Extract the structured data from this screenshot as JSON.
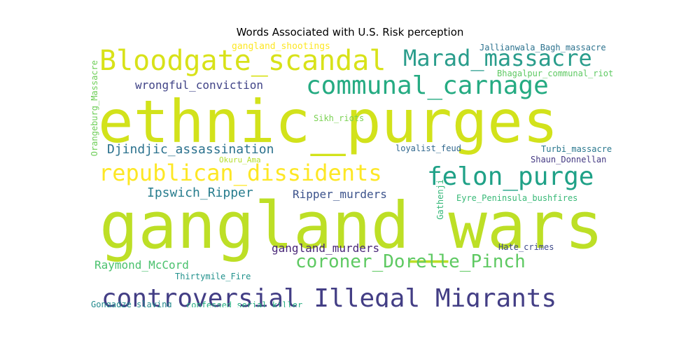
{
  "chart_data": {
    "type": "wordcloud",
    "title": "Words Associated with U.S. Risk perception",
    "words": [
      {
        "text": "ethnic_purges",
        "weight": 100,
        "color": "#d2e21b"
      },
      {
        "text": "gangland_wars",
        "weight": 98,
        "color": "#bddf26"
      },
      {
        "text": "controversial_Illegal_Migrants",
        "weight": 42,
        "color": "#433e85"
      },
      {
        "text": "Bloodgate_scandal",
        "weight": 46,
        "color": "#d8e219"
      },
      {
        "text": "communal_carnage",
        "weight": 41,
        "color": "#25ab82"
      },
      {
        "text": "republican_dissidents",
        "weight": 38,
        "color": "#fde725"
      },
      {
        "text": "felon_purge",
        "weight": 40,
        "color": "#1fa187"
      },
      {
        "text": "Marad_massacre",
        "weight": 37,
        "color": "#2a9d8c"
      },
      {
        "text": "coroner_Dorelle_Pinch",
        "weight": 30,
        "color": "#5ec962"
      },
      {
        "text": "Djindjic_assassination",
        "weight": 20,
        "color": "#2c728e"
      },
      {
        "text": "Ipswich_Ripper",
        "weight": 20,
        "color": "#287d8e"
      },
      {
        "text": "Ripper_murders",
        "weight": 18,
        "color": "#3b528b"
      },
      {
        "text": "gangland_murders",
        "weight": 18,
        "color": "#482677"
      },
      {
        "text": "Raymond_McCord",
        "weight": 18,
        "color": "#4ac16d"
      },
      {
        "text": "wrongful_conviction",
        "weight": 18,
        "color": "#414487"
      },
      {
        "text": "gangland_shootings",
        "weight": 14,
        "color": "#fde725"
      },
      {
        "text": "Jallianwala_Bagh_massacre",
        "weight": 13,
        "color": "#2c728e"
      },
      {
        "text": "Bhagalpur_communal_riots",
        "weight": 13,
        "color": "#5ec962"
      },
      {
        "text": "Sikh_riots",
        "weight": 13,
        "color": "#7ad151"
      },
      {
        "text": "loyalist_feud",
        "weight": 13,
        "color": "#31688e"
      },
      {
        "text": "Turbi_massacre",
        "weight": 13,
        "color": "#2a788e"
      },
      {
        "text": "Shaun_Donnellan",
        "weight": 13,
        "color": "#443983"
      },
      {
        "text": "Okuru_Ama",
        "weight": 12,
        "color": "#b5de2b"
      },
      {
        "text": "Eyre_Peninsula_bushfires",
        "weight": 13,
        "color": "#38b977"
      },
      {
        "text": "Hate_crimes",
        "weight": 12,
        "color": "#3e4989"
      },
      {
        "text": "Thirtymile_Fire",
        "weight": 13,
        "color": "#21918c"
      },
      {
        "text": "confessed_serial_killer",
        "weight": 13,
        "color": "#27ad81"
      },
      {
        "text": "Gongadze_slaying",
        "weight": 12,
        "color": "#238a8d"
      },
      {
        "text": "Orangeburg_Massacre",
        "weight": 13,
        "color": "#6ece58",
        "orientation": "vertical"
      },
      {
        "text": "Gathenji",
        "weight": 12,
        "color": "#35b779",
        "orientation": "vertical"
      }
    ]
  }
}
